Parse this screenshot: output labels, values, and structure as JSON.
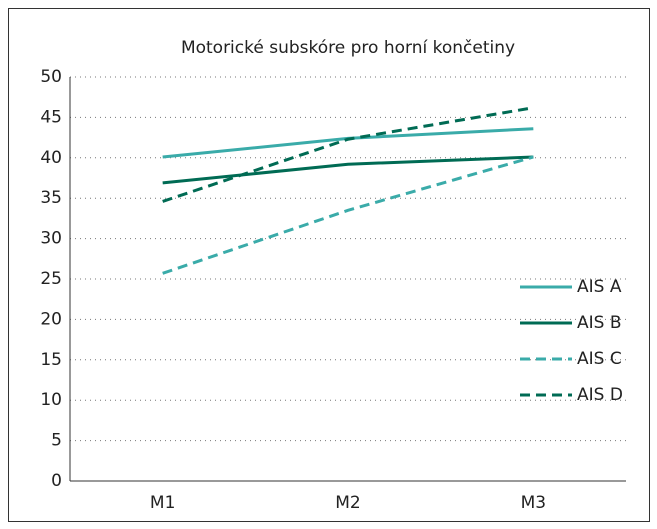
{
  "chart_data": {
    "type": "line",
    "title": "Motorické subskóre pro horní končetiny",
    "categories": [
      "M1",
      "M2",
      "M3"
    ],
    "series": [
      {
        "name": "AIS A",
        "color": "#3aaba9",
        "dash": false,
        "values": [
          40.1,
          42.4,
          43.6
        ]
      },
      {
        "name": "AIS B",
        "color": "#006b54",
        "dash": false,
        "values": [
          36.9,
          39.2,
          40.1
        ]
      },
      {
        "name": "AIS C",
        "color": "#3aaba9",
        "dash": true,
        "values": [
          25.7,
          33.5,
          40.1
        ]
      },
      {
        "name": "AIS D",
        "color": "#006b54",
        "dash": true,
        "values": [
          34.6,
          42.3,
          46.2
        ]
      }
    ],
    "ylim": [
      0,
      50
    ],
    "yticks": [
      0,
      5,
      10,
      15,
      20,
      25,
      30,
      35,
      40,
      45,
      50
    ],
    "grid": true,
    "legend": "right"
  }
}
